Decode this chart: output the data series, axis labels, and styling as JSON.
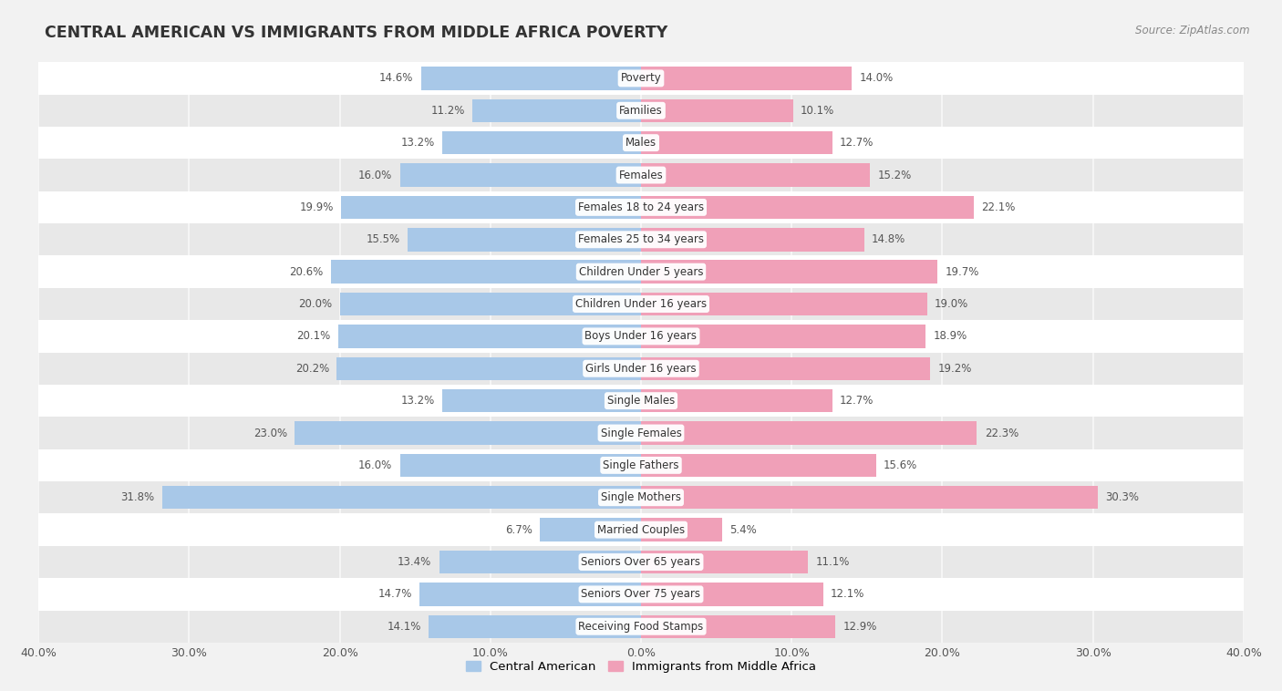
{
  "title": "CENTRAL AMERICAN VS IMMIGRANTS FROM MIDDLE AFRICA POVERTY",
  "source": "Source: ZipAtlas.com",
  "categories": [
    "Poverty",
    "Families",
    "Males",
    "Females",
    "Females 18 to 24 years",
    "Females 25 to 34 years",
    "Children Under 5 years",
    "Children Under 16 years",
    "Boys Under 16 years",
    "Girls Under 16 years",
    "Single Males",
    "Single Females",
    "Single Fathers",
    "Single Mothers",
    "Married Couples",
    "Seniors Over 65 years",
    "Seniors Over 75 years",
    "Receiving Food Stamps"
  ],
  "central_american": [
    14.6,
    11.2,
    13.2,
    16.0,
    19.9,
    15.5,
    20.6,
    20.0,
    20.1,
    20.2,
    13.2,
    23.0,
    16.0,
    31.8,
    6.7,
    13.4,
    14.7,
    14.1
  ],
  "middle_africa": [
    14.0,
    10.1,
    12.7,
    15.2,
    22.1,
    14.8,
    19.7,
    19.0,
    18.9,
    19.2,
    12.7,
    22.3,
    15.6,
    30.3,
    5.4,
    11.1,
    12.1,
    12.9
  ],
  "color_central": "#a8c8e8",
  "color_africa": "#f0a0b8",
  "background_color": "#f2f2f2",
  "row_color_light": "#ffffff",
  "row_color_dark": "#e8e8e8",
  "axis_limit": 40.0,
  "label_central": "Central American",
  "label_africa": "Immigrants from Middle Africa"
}
